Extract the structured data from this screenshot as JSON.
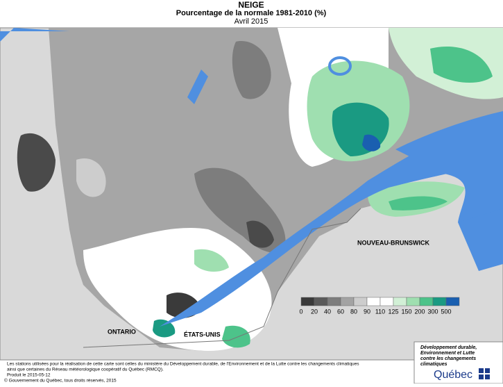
{
  "header": {
    "title": "NEIGE",
    "subtitle": "Pourcentage de la normale 1981-2010 (%)",
    "period": "Avril 2015"
  },
  "map": {
    "labels": [
      "ONTARIO",
      "ÉTATS-UNIS",
      "NOUVEAU-BRUNSWICK"
    ]
  },
  "legend": {
    "labels": [
      0,
      20,
      40,
      60,
      80,
      90,
      110,
      125,
      150,
      200,
      300,
      500
    ],
    "colors": [
      "#3a3a3a",
      "#5a5a5a",
      "#7d7d7d",
      "#a3a3a3",
      "#cdcdcd",
      "#ffffff",
      "#ffffff",
      "#d2f0d6",
      "#9fdfb0",
      "#4dc38a",
      "#1a9a82",
      "#1a5fb0",
      "#1010c8"
    ]
  },
  "footer": {
    "notes": [
      "Les stations utilisées pour la réalisation de cette carte sont celles du ministère du Développement durable, de l'Environnement et de la Lutte contre les changements climatiques",
      "ainsi que certaines du Réseau météorologique coopératif du Québec (RMCQ).",
      "Produit le 2015-05-12",
      "© Gouvernement du Québec, tous droits réservés, 2015"
    ]
  },
  "logo": {
    "ministry": [
      "Développement durable,",
      "Environnement et Lutte",
      "contre les changements",
      "climatiques"
    ],
    "name": "Québec"
  }
}
